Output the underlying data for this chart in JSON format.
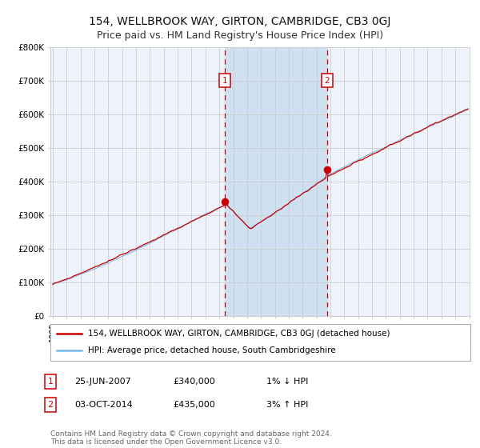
{
  "title": "154, WELLBROOK WAY, GIRTON, CAMBRIDGE, CB3 0GJ",
  "subtitle": "Price paid vs. HM Land Registry's House Price Index (HPI)",
  "ylim": [
    0,
    800000
  ],
  "yticks": [
    0,
    100000,
    200000,
    300000,
    400000,
    500000,
    600000,
    700000,
    800000
  ],
  "ytick_labels": [
    "£0",
    "£100K",
    "£200K",
    "£300K",
    "£400K",
    "£500K",
    "£600K",
    "£700K",
    "£800K"
  ],
  "hpi_color": "#7ab8e8",
  "price_color": "#cc0000",
  "sale1_price": 340000,
  "sale1_date_str": "25-JUN-2007",
  "sale2_price": 435000,
  "sale2_date_str": "03-OCT-2014",
  "legend_line1": "154, WELLBROOK WAY, GIRTON, CAMBRIDGE, CB3 0GJ (detached house)",
  "legend_line2": "HPI: Average price, detached house, South Cambridgeshire",
  "footnote": "Contains HM Land Registry data © Crown copyright and database right 2024.\nThis data is licensed under the Open Government Licence v3.0.",
  "table_row1": [
    "1",
    "25-JUN-2007",
    "£340,000",
    "1% ↓ HPI"
  ],
  "table_row2": [
    "2",
    "03-OCT-2014",
    "£435,000",
    "3% ↑ HPI"
  ],
  "bg_color": "#ffffff",
  "plot_bg_color": "#eef3fb",
  "grid_color": "#cccccc",
  "shade_color": "#cfe0f0",
  "title_fontsize": 10,
  "subtitle_fontsize": 9
}
